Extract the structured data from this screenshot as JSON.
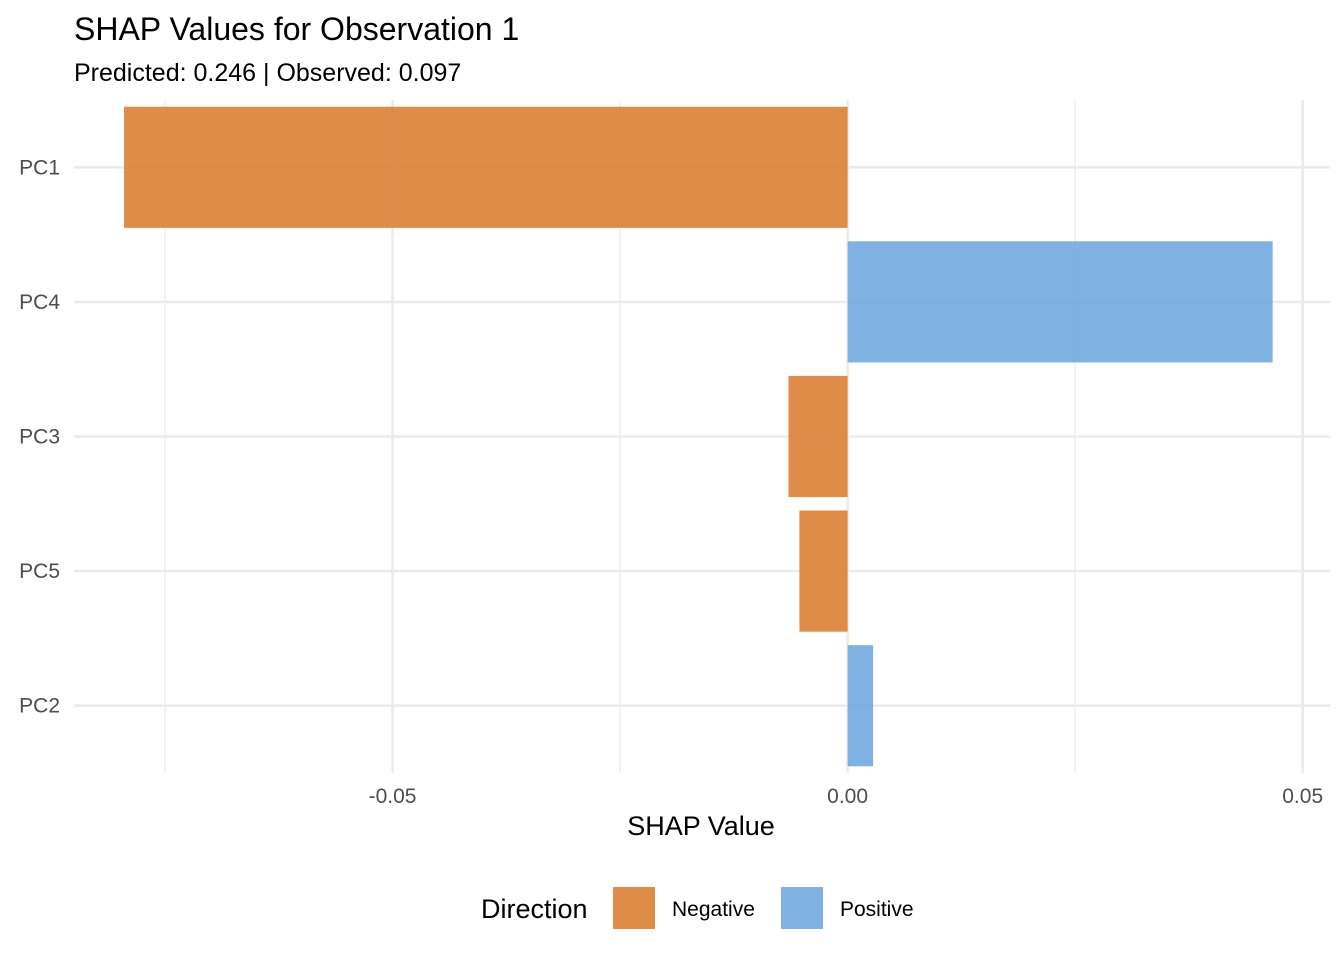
{
  "chart_data": {
    "type": "bar",
    "orientation": "horizontal",
    "title": "SHAP Values for Observation 1",
    "subtitle": "Predicted: 0.246 | Observed: 0.097",
    "xlabel": "SHAP Value",
    "ylabel": "",
    "categories": [
      "PC1",
      "PC4",
      "PC3",
      "PC5",
      "PC2"
    ],
    "values": [
      -0.0795,
      0.0467,
      -0.0065,
      -0.0053,
      0.0028
    ],
    "direction": [
      "Negative",
      "Positive",
      "Negative",
      "Negative",
      "Positive"
    ],
    "xlim": [
      -0.085,
      0.053
    ],
    "xticks": [
      -0.05,
      0.0,
      0.05
    ],
    "xtick_labels": [
      "-0.05",
      "0.00",
      "0.05"
    ],
    "grid": true,
    "legend": {
      "title": "Direction",
      "position": "bottom",
      "entries": [
        {
          "label": "Negative",
          "color": "#dd7f35"
        },
        {
          "label": "Positive",
          "color": "#72a9e0"
        }
      ]
    },
    "colors": {
      "Negative": "#dd7f35",
      "Positive": "#72a9e0"
    }
  }
}
